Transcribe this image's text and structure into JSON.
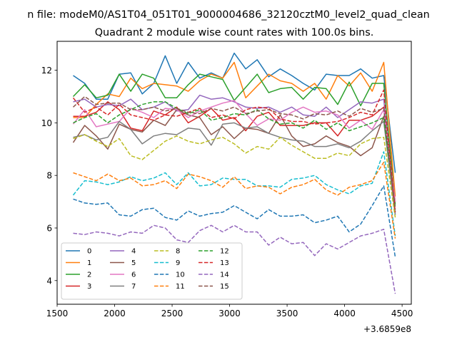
{
  "chart_data": {
    "type": "line",
    "suptitle": "n file: modeM0/AS1T04_051T01_9000004686_32120cztM0_level2_quad_clean",
    "title": "Quadrant 2 module wise count rates with 100.0s bins.",
    "x_offset_label": "+3.6859e8",
    "xlim": [
      1500,
      4580
    ],
    "ylim": [
      3.1,
      13.1
    ],
    "xticks": [
      1500,
      2000,
      2500,
      3000,
      3500,
      4000,
      4500
    ],
    "yticks": [
      4,
      6,
      8,
      10,
      12
    ],
    "grid": false,
    "legend": {
      "position": "lower-left",
      "columns": 4
    },
    "x": [
      1640,
      1740,
      1840,
      1940,
      2040,
      2140,
      2240,
      2340,
      2440,
      2540,
      2640,
      2740,
      2840,
      2940,
      3040,
      3140,
      3240,
      3340,
      3440,
      3540,
      3640,
      3740,
      3840,
      3940,
      4040,
      4140,
      4240,
      4340,
      4440
    ],
    "series": [
      {
        "name": "0",
        "color": "#1f77b4",
        "dash": false,
        "values": [
          11.8,
          11.5,
          10.9,
          10.9,
          11.85,
          11.9,
          11.1,
          11.5,
          12.55,
          11.5,
          12.3,
          11.7,
          11.9,
          11.7,
          12.65,
          12.05,
          12.4,
          11.75,
          12.05,
          11.8,
          11.5,
          11.25,
          11.85,
          11.8,
          11.8,
          12.05,
          11.7,
          11.8,
          8.1
        ]
      },
      {
        "name": "1",
        "color": "#ff7f0e",
        "dash": false,
        "values": [
          10.2,
          10.2,
          10.7,
          11.1,
          11.0,
          11.7,
          11.3,
          11.5,
          11.45,
          11.4,
          11.2,
          11.6,
          11.85,
          11.7,
          12.3,
          10.95,
          11.4,
          11.85,
          11.6,
          11.5,
          11.2,
          11.5,
          10.9,
          11.8,
          11.4,
          11.9,
          11.2,
          12.3,
          7.2
        ]
      },
      {
        "name": "2",
        "color": "#2ca02c",
        "dash": false,
        "values": [
          11.0,
          11.45,
          10.95,
          11.05,
          11.85,
          11.2,
          11.85,
          11.7,
          10.95,
          10.95,
          11.45,
          11.85,
          11.75,
          11.65,
          10.85,
          11.35,
          11.85,
          11.15,
          11.3,
          11.35,
          10.9,
          11.35,
          11.3,
          10.7,
          11.55,
          10.65,
          11.5,
          11.5,
          6.9
        ]
      },
      {
        "name": "3",
        "color": "#d62728",
        "dash": false,
        "values": [
          10.25,
          10.25,
          10.4,
          10.8,
          10.5,
          9.8,
          9.7,
          10.45,
          10.3,
          10.6,
          10.0,
          10.25,
          10.55,
          10.1,
          10.2,
          9.7,
          10.25,
          10.4,
          9.9,
          9.9,
          9.9,
          10.0,
          10.0,
          9.5,
          10.1,
          10.1,
          10.25,
          10.6,
          7.0
        ]
      },
      {
        "name": "4",
        "color": "#9467bd",
        "dash": false,
        "values": [
          10.8,
          10.9,
          10.6,
          10.7,
          10.65,
          10.9,
          10.5,
          10.6,
          10.8,
          10.45,
          10.5,
          11.05,
          10.9,
          10.95,
          10.8,
          10.6,
          10.55,
          10.6,
          10.4,
          10.6,
          10.3,
          10.25,
          10.6,
          10.2,
          10.5,
          10.8,
          10.75,
          10.9,
          6.5
        ]
      },
      {
        "name": "5",
        "color": "#8c564b",
        "dash": false,
        "values": [
          9.25,
          9.9,
          9.5,
          9.0,
          9.95,
          9.75,
          9.65,
          10.1,
          9.9,
          10.5,
          10.3,
          10.2,
          9.55,
          9.85,
          9.4,
          9.8,
          9.75,
          9.6,
          10.3,
          9.5,
          9.1,
          9.2,
          9.5,
          9.25,
          9.1,
          8.75,
          9.05,
          10.25,
          6.6
        ]
      },
      {
        "name": "6",
        "color": "#e377c2",
        "dash": false,
        "values": [
          9.95,
          10.5,
          9.85,
          9.95,
          10.05,
          10.55,
          10.4,
          10.2,
          10.55,
          10.5,
          10.2,
          10.45,
          10.6,
          10.75,
          10.85,
          10.35,
          9.9,
          10.15,
          10.1,
          10.4,
          10.6,
          10.4,
          10.45,
          10.3,
          9.8,
          10.1,
          9.75,
          10.5,
          7.0
        ]
      },
      {
        "name": "7",
        "color": "#7f7f7f",
        "dash": false,
        "values": [
          9.45,
          9.55,
          9.35,
          9.45,
          10.05,
          9.75,
          9.2,
          9.5,
          9.6,
          9.55,
          9.8,
          9.75,
          9.15,
          9.95,
          10.0,
          9.8,
          9.85,
          9.6,
          9.45,
          9.35,
          9.3,
          9.1,
          9.1,
          9.2,
          9.05,
          9.3,
          9.7,
          10.05,
          6.5
        ]
      },
      {
        "name": "8",
        "color": "#bcbd22",
        "dash": true,
        "values": [
          9.4,
          9.55,
          9.3,
          9.1,
          9.4,
          8.75,
          8.6,
          8.95,
          9.3,
          9.5,
          9.3,
          9.2,
          9.35,
          9.45,
          9.2,
          8.85,
          9.1,
          9.0,
          9.45,
          9.15,
          8.9,
          8.65,
          8.65,
          8.85,
          8.75,
          9.2,
          9.4,
          9.45,
          6.4
        ]
      },
      {
        "name": "9",
        "color": "#17becf",
        "dash": true,
        "values": [
          7.25,
          7.8,
          7.75,
          7.65,
          7.75,
          7.95,
          7.8,
          7.9,
          8.1,
          7.65,
          8.1,
          7.6,
          7.65,
          7.9,
          7.85,
          7.85,
          7.6,
          7.6,
          7.55,
          7.85,
          7.9,
          8.0,
          7.65,
          7.45,
          7.3,
          7.6,
          7.7,
          8.9,
          5.7
        ]
      },
      {
        "name": "10",
        "color": "#1f77b4",
        "dash": true,
        "values": [
          7.1,
          6.95,
          6.9,
          6.95,
          6.5,
          6.45,
          6.7,
          6.75,
          6.4,
          6.3,
          6.65,
          6.45,
          6.55,
          6.6,
          6.85,
          6.6,
          6.35,
          6.7,
          6.45,
          6.45,
          6.5,
          6.2,
          6.3,
          6.45,
          5.85,
          6.15,
          6.85,
          7.6,
          4.9
        ]
      },
      {
        "name": "11",
        "color": "#ff7f0e",
        "dash": true,
        "values": [
          8.1,
          7.95,
          7.8,
          8.05,
          7.8,
          7.9,
          7.6,
          7.65,
          7.8,
          7.5,
          8.05,
          7.95,
          7.8,
          7.55,
          7.95,
          7.5,
          7.6,
          7.55,
          7.3,
          7.55,
          7.65,
          7.85,
          7.45,
          7.25,
          7.55,
          7.65,
          7.8,
          8.5,
          5.6
        ]
      },
      {
        "name": "12",
        "color": "#2ca02c",
        "dash": true,
        "values": [
          10.0,
          10.2,
          10.35,
          10.0,
          10.3,
          10.5,
          10.7,
          10.8,
          10.8,
          10.55,
          10.35,
          10.5,
          10.1,
          10.2,
          10.35,
          10.3,
          10.5,
          10.15,
          9.95,
          10.0,
          9.8,
          10.1,
          9.75,
          10.0,
          9.7,
          9.85,
          10.0,
          10.2,
          6.8
        ]
      },
      {
        "name": "13",
        "color": "#d62728",
        "dash": true,
        "values": [
          10.95,
          10.4,
          10.6,
          10.3,
          10.7,
          10.3,
          10.2,
          10.1,
          10.3,
          10.25,
          10.4,
          10.55,
          10.2,
          10.3,
          10.15,
          10.5,
          10.6,
          10.55,
          10.15,
          10.05,
          10.05,
          9.95,
          10.0,
          10.05,
          10.2,
          10.4,
          10.3,
          11.25,
          6.6
        ]
      },
      {
        "name": "14",
        "color": "#9467bd",
        "dash": true,
        "values": [
          5.8,
          5.75,
          5.85,
          5.8,
          5.7,
          5.85,
          5.8,
          6.1,
          6.0,
          5.55,
          5.45,
          5.9,
          6.1,
          5.85,
          6.1,
          5.85,
          5.85,
          5.35,
          5.65,
          5.4,
          5.45,
          4.95,
          5.4,
          5.2,
          5.45,
          5.7,
          5.8,
          5.95,
          3.5
        ]
      },
      {
        "name": "15",
        "color": "#8c564b",
        "dash": true,
        "values": [
          10.6,
          11.0,
          10.7,
          10.75,
          10.75,
          10.5,
          10.5,
          10.6,
          10.45,
          10.55,
          10.4,
          10.35,
          10.55,
          10.45,
          10.6,
          10.35,
          10.45,
          10.5,
          10.35,
          10.3,
          10.15,
          10.35,
          10.3,
          10.45,
          10.25,
          10.55,
          10.4,
          10.55,
          6.7
        ]
      }
    ]
  }
}
